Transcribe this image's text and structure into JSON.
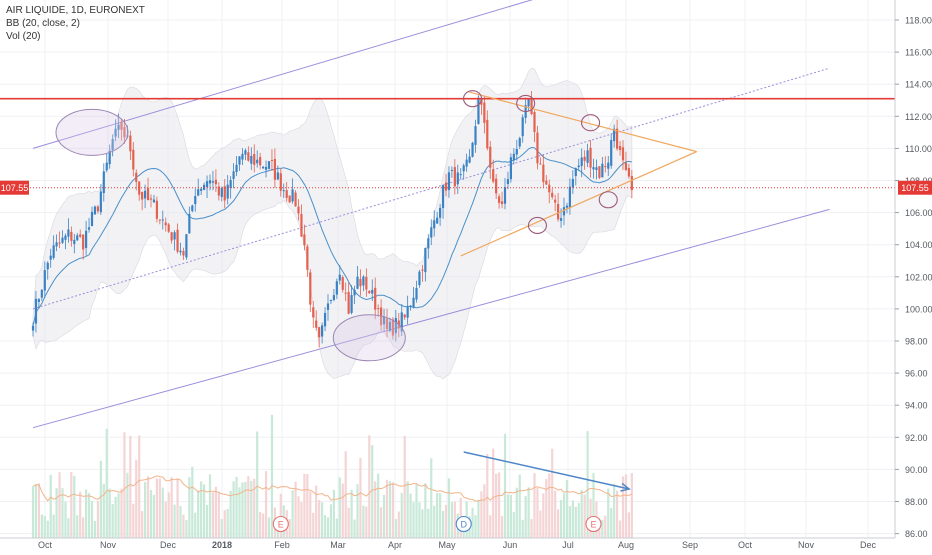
{
  "legend": {
    "symbol": "AIR LIQUIDE, 1D, EURONEXT",
    "bb": "BB (20, close, 2)",
    "vol": "Vol (20)"
  },
  "last_price_label": "107.55",
  "chart_data": {
    "type": "candlestick",
    "ylim": [
      85.5,
      119.5
    ],
    "y_ticks": [
      "86.00",
      "88.00",
      "90.00",
      "92.00",
      "94.00",
      "96.00",
      "98.00",
      "100.00",
      "102.00",
      "104.00",
      "106.00",
      "108.00",
      "110.00",
      "112.00",
      "114.00",
      "116.00",
      "118.00"
    ],
    "x_ticks": [
      "Oct",
      "Nov",
      "Dec",
      "2018",
      "Feb",
      "Mar",
      "Apr",
      "May",
      "Jun",
      "Jul",
      "Aug",
      "Sep",
      "Oct",
      "Nov",
      "Dec"
    ],
    "last_price": 107.55,
    "resistance_level": 113.1,
    "price_anchors": [
      [
        0,
        99.5
      ],
      [
        6,
        103.5
      ],
      [
        12,
        104.6
      ],
      [
        17,
        104.2
      ],
      [
        22,
        106.5
      ],
      [
        27,
        110.5
      ],
      [
        30,
        111.3
      ],
      [
        33,
        110.0
      ],
      [
        36,
        107.2
      ],
      [
        41,
        106.4
      ],
      [
        47,
        104.6
      ],
      [
        51,
        103.5
      ],
      [
        55,
        107.4
      ],
      [
        60,
        108.2
      ],
      [
        65,
        106.8
      ],
      [
        70,
        109.5
      ],
      [
        76,
        109.2
      ],
      [
        81,
        108.8
      ],
      [
        85,
        107.5
      ],
      [
        89,
        106.7
      ],
      [
        92,
        104.0
      ],
      [
        95,
        99.0
      ],
      [
        97,
        97.8
      ],
      [
        101,
        100.8
      ],
      [
        104,
        102.6
      ],
      [
        107,
        100.0
      ],
      [
        110,
        101.8
      ],
      [
        113,
        101.5
      ],
      [
        117,
        100.0
      ],
      [
        120,
        98.6
      ],
      [
        123,
        99.0
      ],
      [
        126,
        99.4
      ],
      [
        129,
        101.0
      ],
      [
        133,
        103.5
      ],
      [
        137,
        106.2
      ],
      [
        141,
        108.3
      ],
      [
        145,
        108.0
      ],
      [
        148,
        109.2
      ],
      [
        151,
        112.9
      ],
      [
        153,
        111.7
      ],
      [
        156,
        107.5
      ],
      [
        159,
        106.4
      ],
      [
        162,
        109.2
      ],
      [
        166,
        111.4
      ],
      [
        168,
        112.9
      ],
      [
        171,
        109.4
      ],
      [
        175,
        107.2
      ],
      [
        178,
        105.6
      ],
      [
        181,
        106.8
      ],
      [
        184,
        108.7
      ],
      [
        188,
        109.6
      ],
      [
        192,
        108.5
      ],
      [
        195,
        109.4
      ],
      [
        197,
        111.3
      ],
      [
        199,
        109.6
      ],
      [
        201,
        108.2
      ],
      [
        203,
        107.4
      ]
    ],
    "volume_axis_ticks": [
      "86.00",
      "88.00",
      "90.00",
      "92.00"
    ],
    "event_markers": [
      {
        "label": "E",
        "bar": 84
      },
      {
        "label": "D",
        "bar": 146
      },
      {
        "label": "E",
        "bar": 190
      }
    ],
    "annotations": {
      "circles_top": [
        [
          20,
          111.0
        ],
        [
          114,
          98.2
        ]
      ],
      "small_circles": [
        [
          149,
          113.1
        ],
        [
          167,
          112.8
        ],
        [
          189,
          111.6
        ],
        [
          171,
          105.2
        ],
        [
          195,
          106.8
        ]
      ],
      "triangle": {
        "apex_bar": 225,
        "apex_price": 109.8,
        "upper_start": [
          148,
          113.5
        ],
        "lower_start": [
          145,
          103.3
        ]
      },
      "volume_arrow": {
        "from_bar": 146,
        "to_bar": 197
      }
    },
    "channels": {
      "upper": [
        [
          0,
          110.0
        ],
        [
          190,
          120.4
        ]
      ],
      "middle": [
        [
          0,
          100.0
        ],
        [
          270,
          115.0
        ]
      ],
      "lower": [
        [
          0,
          92.6
        ],
        [
          270,
          106.2
        ]
      ]
    }
  },
  "colors": {
    "up": "#3a82c4",
    "down": "#e3614f",
    "up_vol": "#c8e8d8",
    "down_vol": "#f4d4d4",
    "resistance": "#e53935",
    "trend_lines": "#f0a860",
    "channel": "#9b8ddc",
    "bb_fill": "#e8e8ec",
    "bb_basis": "#4a90c8",
    "circle": "#9b86b4",
    "arrow": "#4e86c8"
  }
}
